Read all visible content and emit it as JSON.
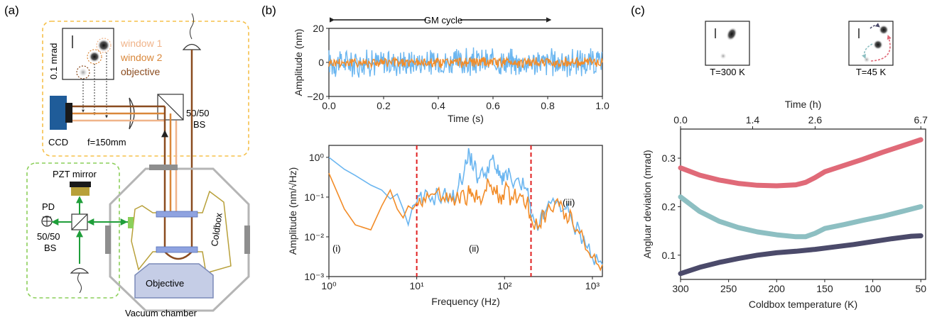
{
  "panel_a": {
    "label": "(a)",
    "inset_scale": "0.1 mrad",
    "legend": [
      "window 1",
      "window 2",
      "objective"
    ],
    "legend_colors": [
      "#f0b48a",
      "#d9873a",
      "#8a4b1f"
    ],
    "ccd": "CCD",
    "lens": "f=150mm",
    "bs_top": [
      "50/50",
      "BS"
    ],
    "pzt": "PZT mirror",
    "pd": "PD",
    "bs_left": [
      "50/50",
      "BS"
    ],
    "coldbox": "Coldbox",
    "objective": "Objective",
    "chamber": "Vacuum chamber",
    "colors": {
      "yellow_box": "#f5c04a",
      "green_box": "#8ccf5a",
      "beam_green": "#1f9e3a",
      "chamber": "#b5b5b5",
      "coldbox": "#b8a03a",
      "window": "#8fa3e0",
      "objective_fill": "#c5cde6"
    }
  },
  "panel_b": {
    "label": "(b)",
    "gm_cycle": "GM cycle",
    "regions": [
      "(i)",
      "(ii)",
      "(iii)"
    ],
    "markers": [
      10,
      200
    ]
  },
  "panel_c": {
    "label": "(c)",
    "thumb_left": "T=300 K",
    "thumb_right": "T=45 K"
  },
  "chart_data": [
    {
      "type": "line",
      "ylabel": "Amplitude (nm)",
      "xlabel": "Time (s)",
      "xlim": [
        0,
        1.0
      ],
      "ylim": [
        -20,
        20
      ],
      "x_ticks": [
        0.0,
        0.2,
        0.4,
        0.6,
        0.8,
        1.0
      ],
      "x_tick_labels": [
        "0.0",
        "0.2",
        "0.4",
        "0.6",
        "0.8",
        "1.0"
      ],
      "y_ticks": [
        -20,
        0,
        20
      ],
      "y_tick_labels": [
        "−20",
        "0",
        "20"
      ],
      "series": [
        {
          "color": "#6bb6f0",
          "amplitude": 8
        },
        {
          "color": "#f28c28",
          "amplitude": 3
        }
      ]
    },
    {
      "type": "line",
      "ylabel": "Amplitude (nm/√Hz)",
      "xlabel": "Frequency (Hz)",
      "x_scale": "log",
      "y_scale": "log",
      "xlim": [
        1,
        1300
      ],
      "ylim": [
        0.001,
        2
      ],
      "x_ticks": [
        1,
        10,
        100,
        1000
      ],
      "x_tick_labels": [
        "10⁰",
        "10¹",
        "10²",
        "10³"
      ],
      "y_ticks": [
        0.001,
        0.01,
        0.1,
        1
      ],
      "y_tick_labels": [
        "10⁻³",
        "10⁻²",
        "10⁻¹",
        "10⁰"
      ],
      "series": [
        {
          "color": "#6bb6f0",
          "x": [
            1,
            1.5,
            2,
            3,
            4,
            5,
            6,
            7,
            8,
            9,
            10,
            12,
            15,
            20,
            25,
            30,
            35,
            40,
            45,
            50,
            60,
            70,
            80,
            90,
            100,
            120,
            150,
            180,
            200,
            250,
            300,
            400,
            500,
            600,
            800,
            1000,
            1300
          ],
          "y": [
            1.0,
            0.5,
            0.35,
            0.2,
            0.15,
            0.09,
            0.12,
            0.05,
            0.02,
            0.06,
            0.07,
            0.09,
            0.1,
            0.12,
            0.08,
            0.2,
            0.5,
            1.2,
            0.6,
            0.3,
            0.4,
            0.9,
            0.5,
            0.3,
            0.4,
            0.25,
            0.2,
            0.15,
            0.03,
            0.02,
            0.05,
            0.08,
            0.05,
            0.02,
            0.01,
            0.003,
            0.002
          ]
        },
        {
          "color": "#f28c28",
          "x": [
            1,
            1.5,
            2,
            3,
            4,
            5,
            6,
            7,
            8,
            9,
            10,
            12,
            15,
            20,
            25,
            30,
            35,
            40,
            45,
            50,
            60,
            70,
            80,
            90,
            100,
            120,
            150,
            180,
            200,
            250,
            300,
            400,
            500,
            600,
            800,
            1000,
            1300
          ],
          "y": [
            0.4,
            0.05,
            0.02,
            0.015,
            0.06,
            0.15,
            0.05,
            0.03,
            0.06,
            0.05,
            0.07,
            0.1,
            0.12,
            0.1,
            0.08,
            0.09,
            0.1,
            0.12,
            0.09,
            0.1,
            0.15,
            0.2,
            0.12,
            0.1,
            0.15,
            0.1,
            0.12,
            0.08,
            0.03,
            0.02,
            0.04,
            0.09,
            0.04,
            0.02,
            0.008,
            0.003,
            0.002
          ]
        }
      ]
    },
    {
      "type": "line",
      "ylabel": "Angluar deviation (mrad)",
      "xlabel": "Coldbox temperature (K)",
      "x2label": "Time (h)",
      "xlim": [
        300,
        45
      ],
      "ylim": [
        0.05,
        0.36
      ],
      "x_ticks": [
        300,
        250,
        200,
        150,
        100,
        50
      ],
      "x_tick_labels": [
        "300",
        "250",
        "200",
        "150",
        "100",
        "50"
      ],
      "x2_ticks": [
        300,
        225,
        160,
        50
      ],
      "x2_tick_labels": [
        "0.0",
        "1.4",
        "2.6",
        "6.7"
      ],
      "y_ticks": [
        0.1,
        0.2,
        0.3
      ],
      "y_tick_labels": [
        "0.1",
        "0.2",
        "0.3"
      ],
      "series": [
        {
          "color": "#e06a78",
          "x": [
            300,
            280,
            260,
            240,
            220,
            200,
            180,
            170,
            160,
            150,
            130,
            110,
            90,
            70,
            50
          ],
          "y": [
            0.28,
            0.265,
            0.255,
            0.248,
            0.244,
            0.243,
            0.245,
            0.25,
            0.26,
            0.272,
            0.285,
            0.298,
            0.312,
            0.325,
            0.338
          ]
        },
        {
          "color": "#8dbfc2",
          "x": [
            300,
            280,
            260,
            240,
            220,
            200,
            180,
            170,
            160,
            150,
            130,
            110,
            90,
            70,
            50
          ],
          "y": [
            0.22,
            0.19,
            0.17,
            0.157,
            0.148,
            0.142,
            0.138,
            0.138,
            0.145,
            0.155,
            0.163,
            0.172,
            0.18,
            0.19,
            0.2
          ]
        },
        {
          "color": "#4b4a6a",
          "x": [
            300,
            280,
            260,
            240,
            220,
            200,
            180,
            160,
            140,
            120,
            100,
            80,
            60,
            50
          ],
          "y": [
            0.062,
            0.075,
            0.085,
            0.093,
            0.1,
            0.105,
            0.108,
            0.112,
            0.117,
            0.122,
            0.128,
            0.134,
            0.139,
            0.14
          ]
        }
      ]
    }
  ]
}
